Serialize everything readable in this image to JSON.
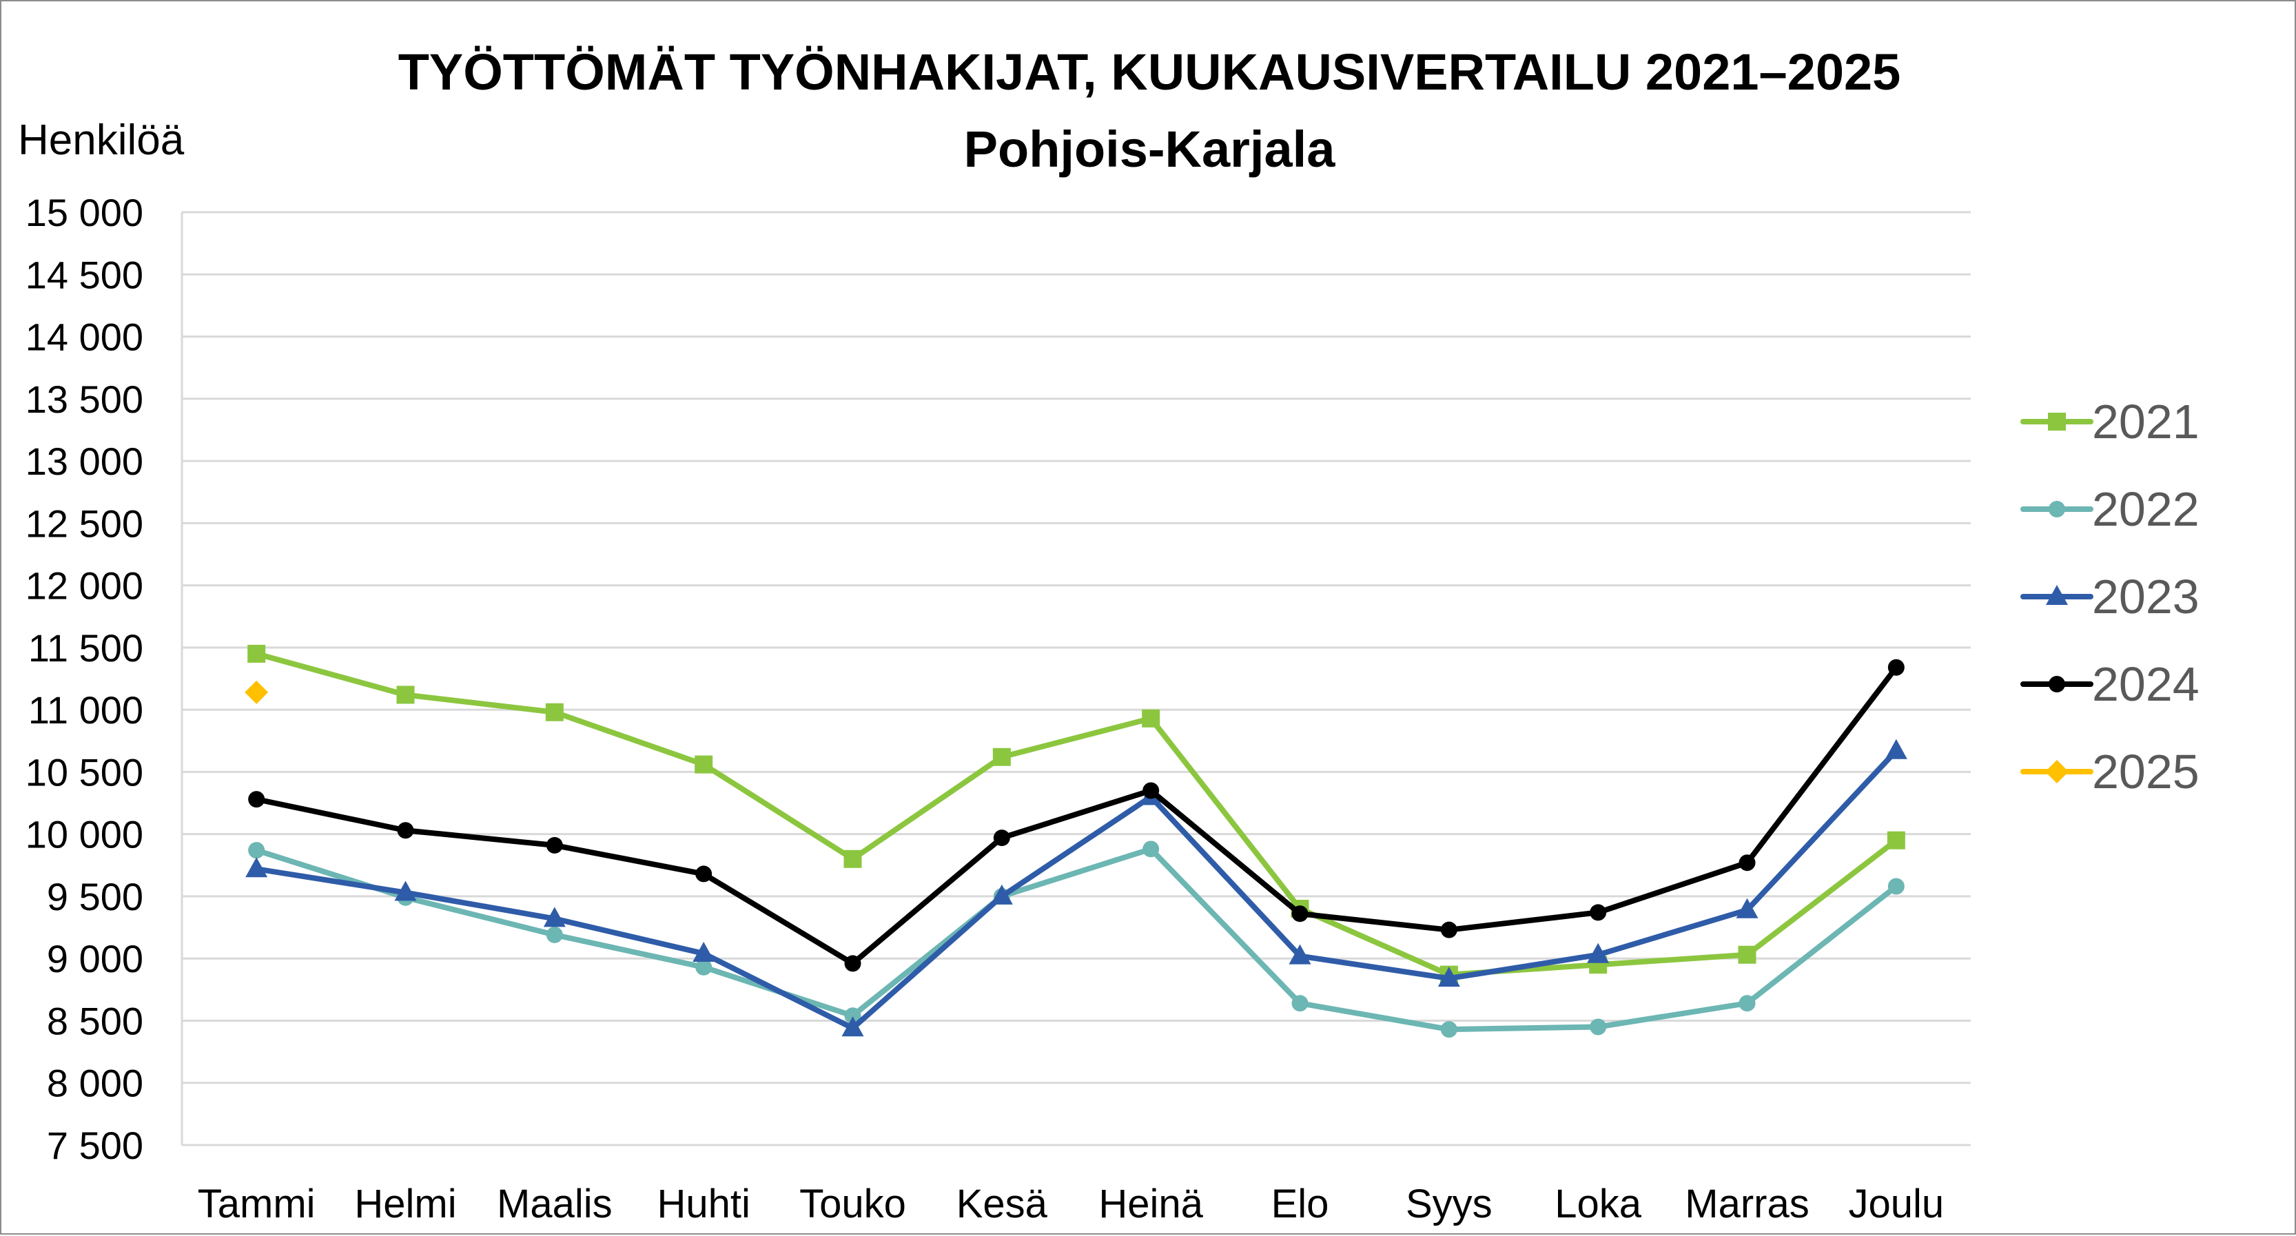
{
  "chart_data": {
    "type": "line",
    "title": "TYÖTTÖMÄT TYÖNHAKIJAT, KUUKAUSIVERTAILU 2021–2025",
    "subtitle": "Pohjois-Karjala",
    "ylabel": "Henkilöä",
    "xlabel": "",
    "ylim": [
      7500,
      15000
    ],
    "ytick_step": 500,
    "ytick_labels": [
      "7 500",
      "8 000",
      "8 500",
      "9 000",
      "9 500",
      "10 000",
      "10 500",
      "11 000",
      "11 500",
      "12 000",
      "12 500",
      "13 000",
      "13 500",
      "14 000",
      "14 500",
      "15 000"
    ],
    "grid": true,
    "legend_position": "right",
    "categories": [
      "Tammi",
      "Helmi",
      "Maalis",
      "Huhti",
      "Touko",
      "Kesä",
      "Heinä",
      "Elo",
      "Syys",
      "Loka",
      "Marras",
      "Joulu"
    ],
    "series": [
      {
        "name": "2021",
        "color": "#8cc63f",
        "marker": "square",
        "values": [
          11450,
          11120,
          10980,
          10560,
          9800,
          10620,
          10930,
          9400,
          8870,
          8950,
          9030,
          9950
        ]
      },
      {
        "name": "2022",
        "color": "#6cb6b3",
        "marker": "circle",
        "values": [
          9870,
          9490,
          9190,
          8930,
          8540,
          9500,
          9880,
          8640,
          8430,
          8450,
          8640,
          9580
        ]
      },
      {
        "name": "2023",
        "color": "#2f5ca8",
        "marker": "triangle",
        "values": [
          9720,
          9530,
          9320,
          9040,
          8440,
          9500,
          10300,
          9020,
          8840,
          9030,
          9390,
          10670
        ]
      },
      {
        "name": "2024",
        "color": "#000000",
        "marker": "circle",
        "values": [
          10280,
          10030,
          9910,
          9680,
          8960,
          9970,
          10350,
          9360,
          9230,
          9370,
          9770,
          11340
        ]
      },
      {
        "name": "2025",
        "color": "#ffc000",
        "marker": "diamond",
        "values": [
          11140,
          null,
          null,
          null,
          null,
          null,
          null,
          null,
          null,
          null,
          null,
          null
        ]
      }
    ]
  }
}
